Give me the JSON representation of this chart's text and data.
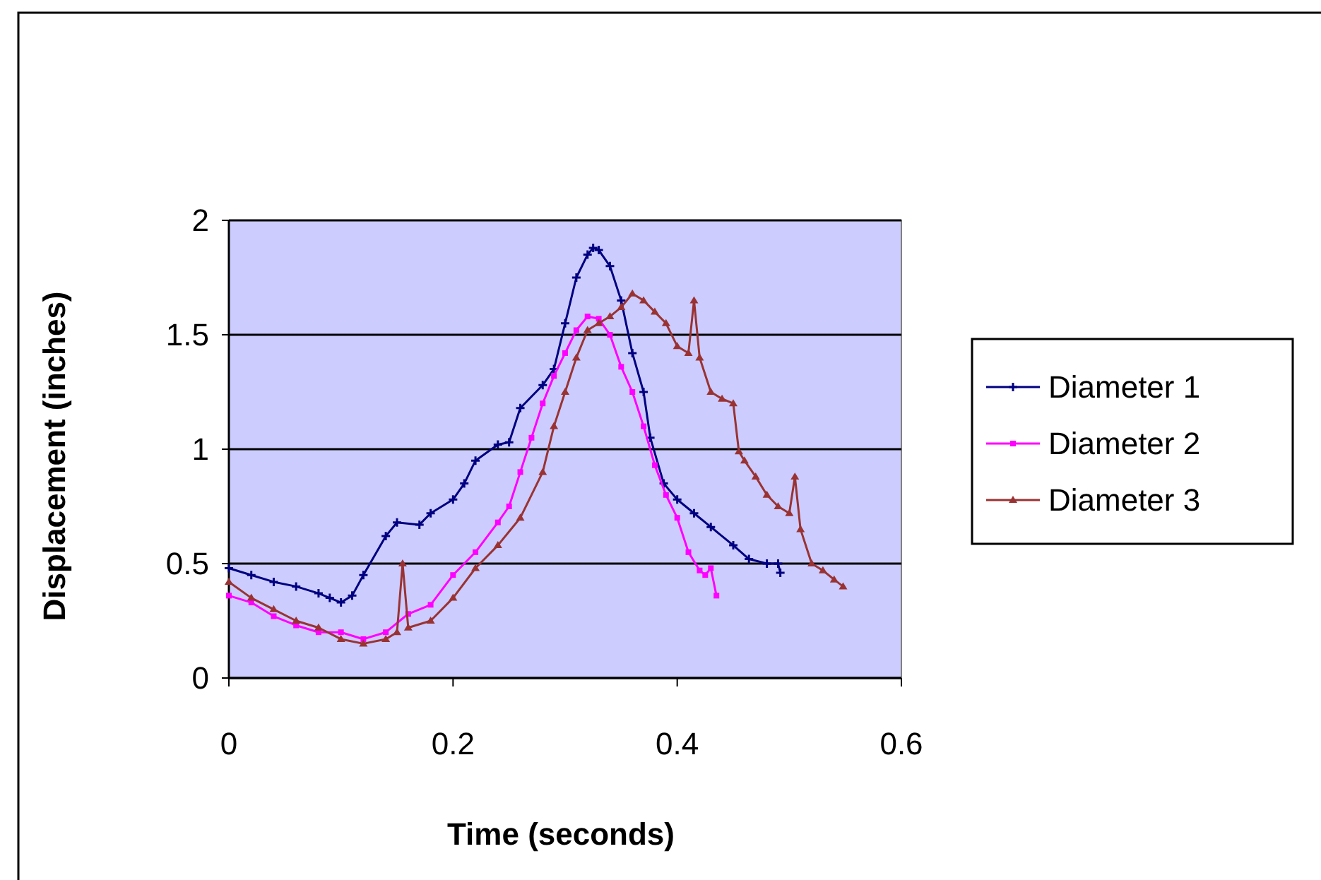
{
  "chart_data": {
    "type": "line",
    "xlabel": "Time (seconds)",
    "ylabel": "Displacement (inches)",
    "xlim": [
      0,
      0.6
    ],
    "xticks": [
      0,
      0.2,
      0.4,
      0.6
    ],
    "ylim": [
      0,
      2
    ],
    "yticks": [
      0,
      0.5,
      1,
      1.5,
      2
    ],
    "grid": "y",
    "legend": "right",
    "line_style": "solid",
    "series": [
      {
        "name": "Diameter 1",
        "color": "#000080",
        "marker": "cross",
        "x": [
          0,
          0.02,
          0.04,
          0.06,
          0.08,
          0.09,
          0.1,
          0.11,
          0.12,
          0.14,
          0.15,
          0.17,
          0.18,
          0.2,
          0.21,
          0.22,
          0.24,
          0.25,
          0.26,
          0.28,
          0.29,
          0.3,
          0.31,
          0.32,
          0.325,
          0.33,
          0.34,
          0.35,
          0.36,
          0.37,
          0.376,
          0.388,
          0.4,
          0.415,
          0.43,
          0.45,
          0.464,
          0.48,
          0.49,
          0.492
        ],
        "values": [
          0.48,
          0.45,
          0.42,
          0.4,
          0.37,
          0.35,
          0.33,
          0.36,
          0.45,
          0.62,
          0.68,
          0.67,
          0.72,
          0.78,
          0.85,
          0.95,
          1.02,
          1.03,
          1.18,
          1.28,
          1.35,
          1.55,
          1.75,
          1.85,
          1.88,
          1.87,
          1.8,
          1.65,
          1.42,
          1.25,
          1.05,
          0.85,
          0.78,
          0.72,
          0.66,
          0.58,
          0.52,
          0.5,
          0.5,
          0.46
        ]
      },
      {
        "name": "Diameter 2",
        "color": "#ff00ff",
        "marker": "square",
        "x": [
          0,
          0.02,
          0.04,
          0.06,
          0.08,
          0.1,
          0.12,
          0.14,
          0.16,
          0.18,
          0.2,
          0.22,
          0.24,
          0.25,
          0.26,
          0.27,
          0.28,
          0.29,
          0.3,
          0.31,
          0.32,
          0.33,
          0.34,
          0.35,
          0.36,
          0.37,
          0.38,
          0.39,
          0.4,
          0.41,
          0.42,
          0.425,
          0.43,
          0.435
        ],
        "values": [
          0.36,
          0.33,
          0.27,
          0.23,
          0.2,
          0.2,
          0.17,
          0.2,
          0.28,
          0.32,
          0.45,
          0.55,
          0.68,
          0.75,
          0.9,
          1.05,
          1.2,
          1.32,
          1.42,
          1.52,
          1.58,
          1.57,
          1.5,
          1.36,
          1.25,
          1.1,
          0.93,
          0.8,
          0.7,
          0.55,
          0.47,
          0.45,
          0.48,
          0.36
        ]
      },
      {
        "name": "Diameter 3",
        "color": "#993333",
        "marker": "triangle",
        "x": [
          0,
          0.02,
          0.04,
          0.06,
          0.08,
          0.1,
          0.12,
          0.14,
          0.15,
          0.155,
          0.16,
          0.18,
          0.2,
          0.22,
          0.24,
          0.26,
          0.28,
          0.29,
          0.3,
          0.31,
          0.32,
          0.33,
          0.34,
          0.35,
          0.36,
          0.37,
          0.38,
          0.39,
          0.4,
          0.41,
          0.415,
          0.42,
          0.43,
          0.44,
          0.45,
          0.455,
          0.46,
          0.47,
          0.48,
          0.49,
          0.5,
          0.505,
          0.51,
          0.52,
          0.53,
          0.54,
          0.548
        ],
        "values": [
          0.42,
          0.35,
          0.3,
          0.25,
          0.22,
          0.17,
          0.15,
          0.17,
          0.2,
          0.5,
          0.22,
          0.25,
          0.35,
          0.48,
          0.58,
          0.7,
          0.9,
          1.1,
          1.25,
          1.4,
          1.52,
          1.55,
          1.58,
          1.62,
          1.68,
          1.65,
          1.6,
          1.55,
          1.45,
          1.42,
          1.65,
          1.4,
          1.25,
          1.22,
          1.2,
          0.99,
          0.95,
          0.88,
          0.8,
          0.75,
          0.72,
          0.88,
          0.65,
          0.5,
          0.47,
          0.43,
          0.4
        ]
      }
    ]
  }
}
